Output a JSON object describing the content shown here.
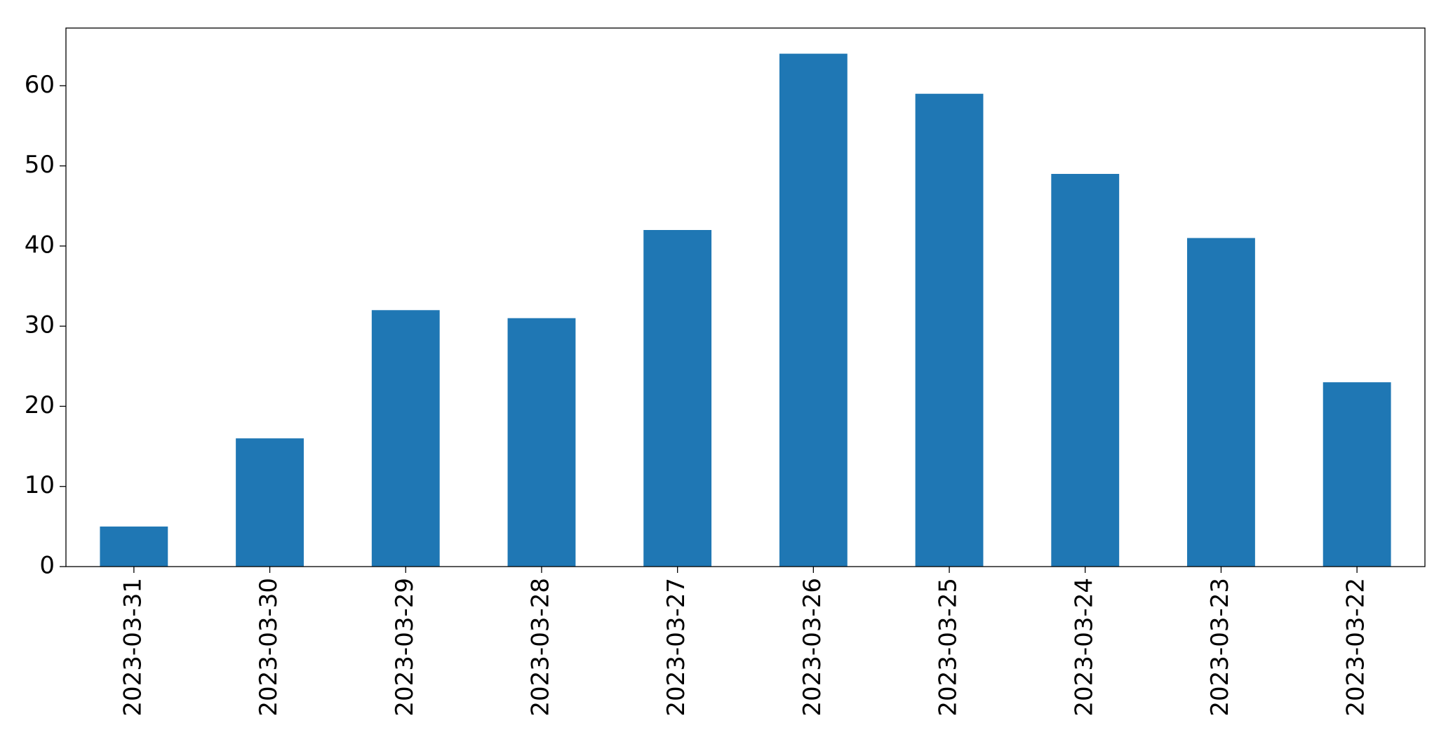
{
  "chart_data": {
    "type": "bar",
    "categories": [
      "2023-03-31",
      "2023-03-30",
      "2023-03-29",
      "2023-03-28",
      "2023-03-27",
      "2023-03-26",
      "2023-03-25",
      "2023-03-24",
      "2023-03-23",
      "2023-03-22"
    ],
    "values": [
      5,
      16,
      32,
      31,
      42,
      64,
      59,
      49,
      41,
      23
    ],
    "color": "#1f77b4",
    "ylim": [
      0,
      67.2
    ],
    "yticks": [
      0,
      10,
      20,
      30,
      40,
      50,
      60
    ],
    "grid": false
  }
}
